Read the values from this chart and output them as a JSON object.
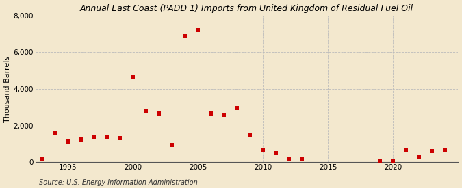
{
  "title": "Annual East Coast (PADD 1) Imports from United Kingdom of Residual Fuel Oil",
  "ylabel": "Thousand Barrels",
  "source": "Source: U.S. Energy Information Administration",
  "background_color": "#f3e8ce",
  "plot_background_color": "#f3e8ce",
  "marker_color": "#cc0000",
  "marker_size": 4,
  "marker_style": "s",
  "grid_color": "#bbbbbb",
  "ylim": [
    0,
    8000
  ],
  "yticks": [
    0,
    2000,
    4000,
    6000,
    8000
  ],
  "ytick_labels": [
    "0",
    "2,000",
    "4,000",
    "6,000",
    "8,000"
  ],
  "xlim": [
    1992.5,
    2025
  ],
  "xticks": [
    1995,
    2000,
    2005,
    2010,
    2015,
    2020
  ],
  "years": [
    1993,
    1994,
    1995,
    1996,
    1997,
    1998,
    1999,
    2000,
    2001,
    2002,
    2003,
    2004,
    2005,
    2006,
    2007,
    2008,
    2009,
    2010,
    2011,
    2012,
    2013,
    2019,
    2020,
    2021,
    2022,
    2023,
    2024
  ],
  "values": [
    150,
    1600,
    1150,
    1250,
    1350,
    1350,
    1300,
    4650,
    2800,
    2650,
    950,
    6850,
    7200,
    2650,
    2600,
    2950,
    1450,
    650,
    500,
    175,
    175,
    50,
    100,
    650,
    300,
    600,
    650
  ]
}
